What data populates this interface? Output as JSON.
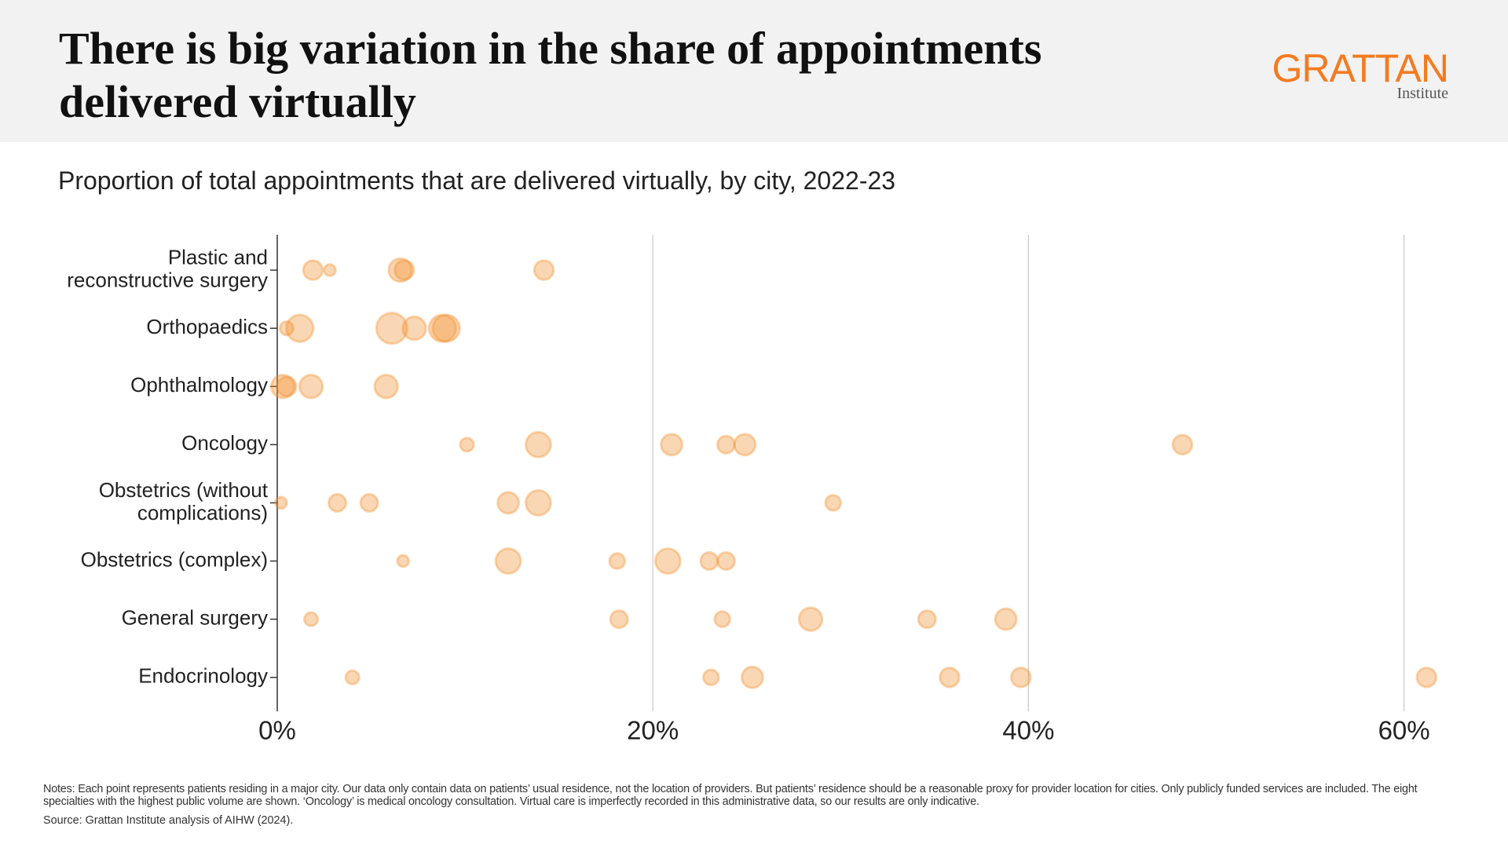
{
  "logo": {
    "name": "GRATTAN",
    "sub": "Institute"
  },
  "chart_data": {
    "type": "bubble",
    "title": [
      "There is big variation in the share of appointments",
      "delivered virtually"
    ],
    "subtitle": "Proportion of total appointments that are delivered virtually, by city, 2022-23",
    "categories": [
      [
        "Plastic and",
        "reconstructive surgery"
      ],
      [
        "Orthopaedics"
      ],
      [
        "Ophthalmology"
      ],
      [
        "Oncology"
      ],
      [
        "Obstetrics (without",
        "complications)"
      ],
      [
        "Obstetrics (complex)"
      ],
      [
        "General surgery"
      ],
      [
        "Endocrinology"
      ]
    ],
    "values": [
      [
        1.9,
        2.8,
        6.55,
        6.76,
        14.2
      ],
      [
        0.5,
        1.2,
        6.1,
        7.3,
        8.8,
        9.0
      ],
      [
        0.3,
        0.5,
        1.8,
        5.8
      ],
      [
        10.1,
        13.9,
        21.0,
        23.9,
        24.9,
        48.2
      ],
      [
        0.2,
        3.2,
        4.9,
        12.3,
        13.9,
        29.6
      ],
      [
        6.7,
        12.3,
        18.1,
        20.8,
        23.0,
        23.9
      ],
      [
        1.8,
        18.2,
        23.7,
        28.4,
        34.6,
        38.8
      ],
      [
        4.0,
        23.1,
        25.3,
        35.8,
        39.6,
        61.2
      ]
    ],
    "sizes": [
      [
        10,
        6,
        12,
        10,
        10
      ],
      [
        7,
        14,
        16,
        12,
        14,
        14
      ],
      [
        12,
        10,
        12,
        12
      ],
      [
        7,
        13,
        11,
        9,
        11,
        10
      ],
      [
        6,
        9,
        9,
        11,
        13,
        8
      ],
      [
        6,
        13,
        8,
        13,
        9,
        9
      ],
      [
        7,
        9,
        8,
        12,
        9,
        11
      ],
      [
        7,
        8,
        11,
        10,
        10,
        10
      ]
    ],
    "color": "#f28c28",
    "xlim": [
      0,
      62
    ],
    "xticks": [
      {
        "value": 0,
        "label": "0%"
      },
      {
        "value": 20,
        "label": "20%"
      },
      {
        "value": 40,
        "label": "40%"
      },
      {
        "value": 60,
        "label": "60%"
      }
    ],
    "grid": true,
    "notes": "Notes: Each point represents patients residing in a major city. Our data only contain data on patients’ usual residence, not the location of providers. But patients’ residence should be a reasonable proxy for provider location for cities. Only publicly funded services are included. The eight specialties with the highest public volume are shown. ‘Oncology’ is medical oncology consultation. Virtual care is imperfectly recorded in this administrative data, so our results are only indicative.",
    "source": "Source: Grattan Institute analysis of AIHW (2024)."
  }
}
